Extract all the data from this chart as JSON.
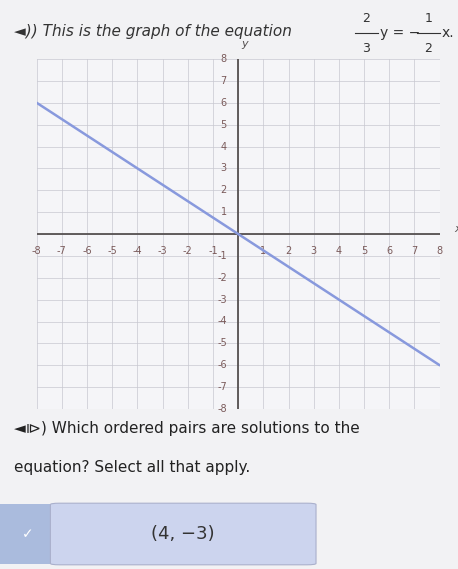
{
  "bg_color": "#f2f2f4",
  "graph_bg": "#f5f5f8",
  "grid_color": "#c8c8d0",
  "axis_color": "#555050",
  "line_color": "#8899dd",
  "xmin": -8,
  "xmax": 8,
  "ymin": -8,
  "ymax": 8,
  "line_slope": -0.75,
  "tick_color": "#7a5a5a",
  "text_color": "#333333",
  "question_color": "#222222",
  "answer_text": "(4, −3)",
  "answer_bg": "#ccd4ee",
  "answer_border": "#aab0cc",
  "check_color": "#4466bb",
  "check_bg": "#aabbdd",
  "top_text": "◄⧐) This is the graph of the equation",
  "question_text1": "◄⧐) Which ordered pairs are solutions to the",
  "question_text2": "equation? Select all that apply.",
  "title_fontsize": 11,
  "question_fontsize": 11,
  "answer_fontsize": 13,
  "tick_fontsize": 7
}
